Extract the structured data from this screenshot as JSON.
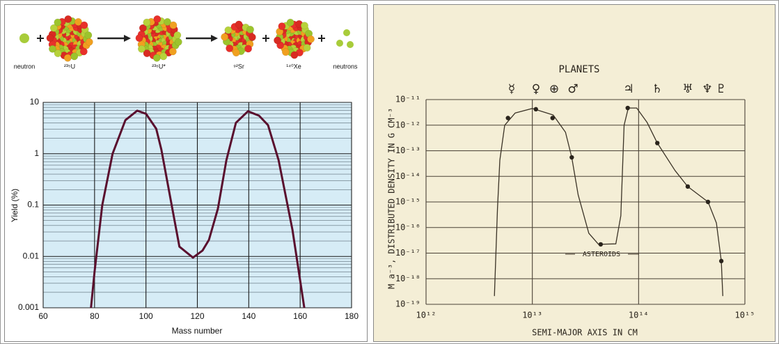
{
  "chart_data": [
    {
      "type": "line",
      "diagram_labels": [
        "neutron",
        "²³⁵U",
        "²³⁶U*",
        "⁹²Sr",
        "¹⁴⁰Xe",
        "neutrons"
      ],
      "xlabel": "Mass number",
      "ylabel": "Yield (%)",
      "yscale": "log",
      "grid": true,
      "minor_grid": true,
      "xlim": [
        60,
        180
      ],
      "xticks": [
        60,
        80,
        100,
        120,
        140,
        160,
        180
      ],
      "ylim": [
        0.001,
        10
      ],
      "yticks": [
        0.001,
        0.01,
        0.1,
        1,
        10
      ],
      "series": [
        {
          "color": "#5a0f2e",
          "mode": "line",
          "x": [
            78.6,
            80,
            83,
            87,
            92,
            96.6,
            100,
            104,
            106,
            110,
            113,
            118.3,
            122,
            124.5,
            128,
            131.3,
            135,
            139.7,
            144,
            147.5,
            151.6,
            157,
            161.6
          ],
          "values": [
            0.001,
            0.005,
            0.1,
            1,
            4.5,
            6.9,
            6.0,
            3.06,
            1.2,
            0.1,
            0.0155,
            0.0095,
            0.013,
            0.021,
            0.085,
            0.75,
            4.0,
            6.7,
            5.5,
            3.6,
            0.75,
            0.033,
            0.001
          ]
        }
      ]
    },
    {
      "type": "line",
      "title": "PLANETS",
      "planet_symbols": [
        "☿",
        "♀",
        "⊕",
        "♂",
        "♃",
        "♄",
        "♅",
        "♆",
        "♇"
      ],
      "annotation": "ASTEROIDS",
      "xlabel": "SEMI-MAJOR AXIS IN CM",
      "ylabel": "M a⁻³, DISTRIBUTED DENSITY IN G CM⁻³",
      "xscale": "log",
      "yscale": "log",
      "grid": true,
      "xlim": [
        1000000000000.0,
        1000000000000000.0
      ],
      "xticks": [
        {
          "value": 1000000000000.0,
          "label": "10¹²"
        },
        {
          "value": 10000000000000.0,
          "label": "10¹³"
        },
        {
          "value": 100000000000000.0,
          "label": "10¹⁴"
        },
        {
          "value": 1000000000000000.0,
          "label": "10¹⁵"
        }
      ],
      "ylim": [
        1e-19,
        1e-11
      ],
      "yticks": [
        {
          "value": 1e-19,
          "label": "10⁻¹⁹"
        },
        {
          "value": 1e-18,
          "label": "10⁻¹⁸"
        },
        {
          "value": 1e-17,
          "label": "10⁻¹⁷"
        },
        {
          "value": 1e-16,
          "label": "10⁻¹⁶"
        },
        {
          "value": 1e-15,
          "label": "10⁻¹⁵"
        },
        {
          "value": 1e-14,
          "label": "10⁻¹⁴"
        },
        {
          "value": 1e-13,
          "label": "10⁻¹³"
        },
        {
          "value": 1e-12,
          "label": "10⁻¹²"
        },
        {
          "value": 1e-11,
          "label": "10⁻¹¹"
        }
      ],
      "series": [
        {
          "color": "#3a3226",
          "mode": "line",
          "x": [
            4400000000000.0,
            4700000000000.0,
            4950000000000.0,
            5500000000000.0,
            6900000000000.0,
            10000000000000.0,
            15700000000000.0,
            20500000000000.0,
            23500000000000.0,
            27000000000000.0,
            34000000000000.0,
            42000000000000.0,
            61000000000000.0,
            68000000000000.0,
            73000000000000.0,
            80000000000000.0,
            96000000000000.0,
            120000000000000.0,
            150000000000000.0,
            220000000000000.0,
            290000000000000.0,
            450000000000000.0,
            540000000000000.0,
            600000000000000.0,
            620000000000000.0
          ],
          "values": [
            2.1e-19,
            5.4e-16,
            4.3e-14,
            1e-12,
            3e-12,
            4.5e-12,
            2.5e-12,
            5.3e-13,
            5.5e-14,
            1.9e-15,
            6e-17,
            2.2e-17,
            2.3e-17,
            2.9e-16,
            1e-12,
            4.7e-12,
            4.7e-12,
            1.3e-12,
            2e-13,
            1.7e-14,
            4e-15,
            1e-15,
            1.5e-16,
            4.9e-18,
            2.1e-19
          ]
        },
        {
          "color": "#2a241c",
          "mode": "markers",
          "x": [
            5900000000000.0,
            10800000000000.0,
            15500000000000.0,
            23500000000000.0,
            44000000000000.0,
            79000000000000.0,
            150000000000000.0,
            290000000000000.0,
            450000000000000.0,
            600000000000000.0
          ],
          "values": [
            1.9e-12,
            4.2e-12,
            1.9e-12,
            5.5e-14,
            2.2e-17,
            4.7e-12,
            2e-13,
            4e-15,
            1e-15,
            4.9e-18
          ]
        }
      ]
    }
  ]
}
